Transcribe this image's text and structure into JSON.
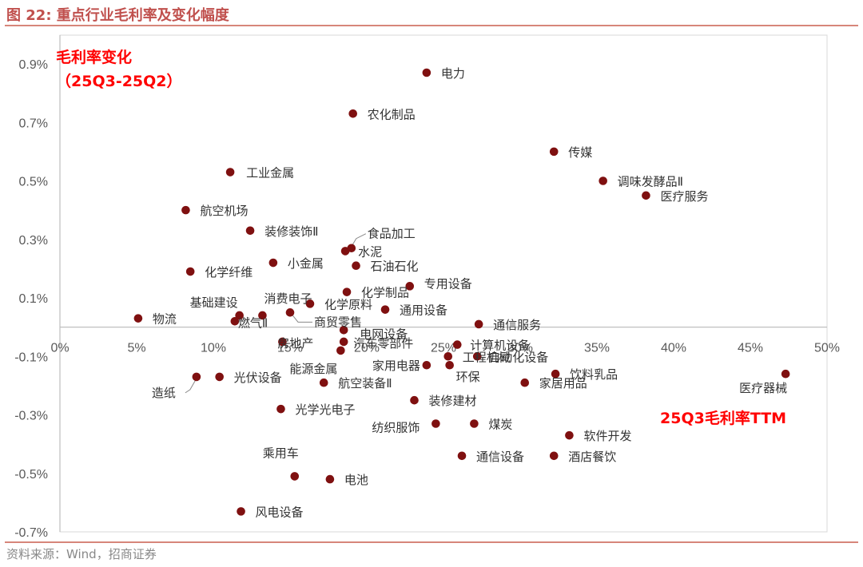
{
  "figure": {
    "title": "图 22:  重点行业毛利率及变化幅度",
    "source": "资料来源：Wind，招商证券"
  },
  "colors": {
    "accent": "#c0504d",
    "point": "#7f1010",
    "red_label": "#ff0000",
    "axis": "#bfbfbf"
  },
  "chart_data": {
    "type": "scatter",
    "title": "",
    "ylabel": "毛利率变化",
    "ylabel_sub": "（25Q3-25Q2）",
    "xlabel": "25Q3毛利率TTM",
    "xlim": [
      0,
      50
    ],
    "ylim": [
      -0.7,
      0.95
    ],
    "x_ticks": [
      "0%",
      "5%",
      "10%",
      "15%",
      "20%",
      "25%",
      "30%",
      "35%",
      "40%",
      "45%",
      "50%"
    ],
    "y_ticks": [
      "0.9%",
      "0.7%",
      "0.5%",
      "0.3%",
      "0.1%",
      "-0.1%",
      "-0.3%",
      "-0.5%",
      "-0.7%"
    ],
    "points": [
      {
        "name": "电力",
        "x": 23.9,
        "y": 0.87
      },
      {
        "name": "农化制品",
        "x": 19.1,
        "y": 0.73
      },
      {
        "name": "传媒",
        "x": 32.2,
        "y": 0.6
      },
      {
        "name": "工业金属",
        "x": 11.1,
        "y": 0.53
      },
      {
        "name": "调味发酵品Ⅱ",
        "x": 35.4,
        "y": 0.5
      },
      {
        "name": "医疗服务",
        "x": 38.2,
        "y": 0.45
      },
      {
        "name": "航空机场",
        "x": 8.2,
        "y": 0.4
      },
      {
        "name": "装修装饰Ⅱ",
        "x": 12.4,
        "y": 0.33
      },
      {
        "name": "食品加工",
        "x": 19.0,
        "y": 0.27
      },
      {
        "name": "水泥",
        "x": 18.6,
        "y": 0.26
      },
      {
        "name": "小金属",
        "x": 13.9,
        "y": 0.22
      },
      {
        "name": "石油石化",
        "x": 19.3,
        "y": 0.21
      },
      {
        "name": "化学纤维",
        "x": 8.5,
        "y": 0.19
      },
      {
        "name": "专用设备",
        "x": 22.8,
        "y": 0.14
      },
      {
        "name": "化学制品",
        "x": 18.7,
        "y": 0.12
      },
      {
        "name": "化学原料",
        "x": 16.3,
        "y": 0.08
      },
      {
        "name": "通用设备",
        "x": 21.2,
        "y": 0.06
      },
      {
        "name": "商贸零售",
        "x": 15.0,
        "y": 0.05
      },
      {
        "name": "基础建设",
        "x": 11.7,
        "y": 0.04
      },
      {
        "name": "消费电子",
        "x": 13.2,
        "y": 0.04
      },
      {
        "name": "物流",
        "x": 5.1,
        "y": 0.03
      },
      {
        "name": "燃气Ⅱ",
        "x": 11.4,
        "y": 0.02
      },
      {
        "name": "通信服务",
        "x": 27.3,
        "y": 0.01
      },
      {
        "name": "电网设备",
        "x": 18.5,
        "y": -0.01
      },
      {
        "name": "房地产",
        "x": 14.5,
        "y": -0.05
      },
      {
        "name": "汽车零部件",
        "x": 18.5,
        "y": -0.05
      },
      {
        "name": "计算机设备",
        "x": 25.9,
        "y": -0.06
      },
      {
        "name": "能源金属",
        "x": 18.3,
        "y": -0.08
      },
      {
        "name": "工程机械",
        "x": 25.3,
        "y": -0.1
      },
      {
        "name": "自动化设备",
        "x": 27.2,
        "y": -0.1
      },
      {
        "name": "家用电器",
        "x": 23.9,
        "y": -0.13
      },
      {
        "name": "环保",
        "x": 25.4,
        "y": -0.13
      },
      {
        "name": "饮料乳品",
        "x": 32.3,
        "y": -0.16
      },
      {
        "name": "医疗器械",
        "x": 47.3,
        "y": -0.16
      },
      {
        "name": "造纸",
        "x": 8.9,
        "y": -0.17
      },
      {
        "name": "光伏设备",
        "x": 10.4,
        "y": -0.17
      },
      {
        "name": "航空装备Ⅱ",
        "x": 17.2,
        "y": -0.19
      },
      {
        "name": "家居用品",
        "x": 30.3,
        "y": -0.19
      },
      {
        "name": "装修建材",
        "x": 23.1,
        "y": -0.25
      },
      {
        "name": "光学光电子",
        "x": 14.4,
        "y": -0.28
      },
      {
        "name": "纺织服饰",
        "x": 24.5,
        "y": -0.33
      },
      {
        "name": "煤炭",
        "x": 27.0,
        "y": -0.33
      },
      {
        "name": "软件开发",
        "x": 33.2,
        "y": -0.37
      },
      {
        "name": "通信设备",
        "x": 26.2,
        "y": -0.44
      },
      {
        "name": "酒店餐饮",
        "x": 32.2,
        "y": -0.44
      },
      {
        "name": "乘用车",
        "x": 15.3,
        "y": -0.51
      },
      {
        "name": "电池",
        "x": 17.6,
        "y": -0.52
      },
      {
        "name": "风电设备",
        "x": 11.8,
        "y": -0.63
      }
    ]
  }
}
